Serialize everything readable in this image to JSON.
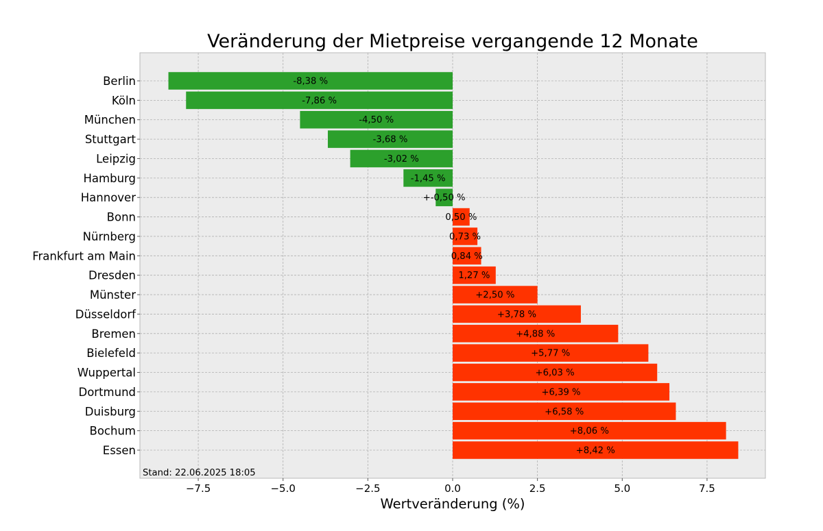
{
  "chart_data": {
    "type": "bar",
    "orientation": "horizontal",
    "title": "Veränderung der Mietpreise vergangende 12 Monate",
    "xlabel": "Wertveränderung (%)",
    "ylabel": "",
    "xlim": [
      -9.22,
      9.22
    ],
    "xticks": [
      -7.5,
      -5.0,
      -2.5,
      0.0,
      2.5,
      5.0,
      7.5
    ],
    "xtick_labels": [
      "−7.5",
      "−5.0",
      "−2.5",
      "0.0",
      "2.5",
      "5.0",
      "7.5"
    ],
    "grid": true,
    "background": "#ececec",
    "colors": {
      "negative": "#2ca02c",
      "positive": "#ff3300"
    },
    "categories": [
      "Berlin",
      "Köln",
      "München",
      "Stuttgart",
      "Leipzig",
      "Hamburg",
      "Hannover",
      "Bonn",
      "Nürnberg",
      "Frankfurt am Main",
      "Dresden",
      "Münster",
      "Düsseldorf",
      "Bremen",
      "Bielefeld",
      "Wuppertal",
      "Dortmund",
      "Duisburg",
      "Bochum",
      "Essen"
    ],
    "values": [
      -8.38,
      -7.86,
      -4.5,
      -3.68,
      -3.02,
      -1.45,
      -0.5,
      0.5,
      0.73,
      0.84,
      1.27,
      2.5,
      3.78,
      4.88,
      5.77,
      6.03,
      6.39,
      6.58,
      8.06,
      8.42
    ],
    "data_labels": [
      "-8,38 %",
      "-7,86 %",
      "-4,50 %",
      "-3,68 %",
      "-3,02 %",
      "-1,45 %",
      "+-0,50 %",
      "0,50 %",
      "0,73 %",
      "0,84 %",
      "1,27 %",
      "+2,50 %",
      "+3,78 %",
      "+4,88 %",
      "+5,77 %",
      "+6,03 %",
      "+6,39 %",
      "+6,58 %",
      "+8,06 %",
      "+8,42 %"
    ],
    "annotation": "Stand: 22.06.2025 18:05"
  }
}
